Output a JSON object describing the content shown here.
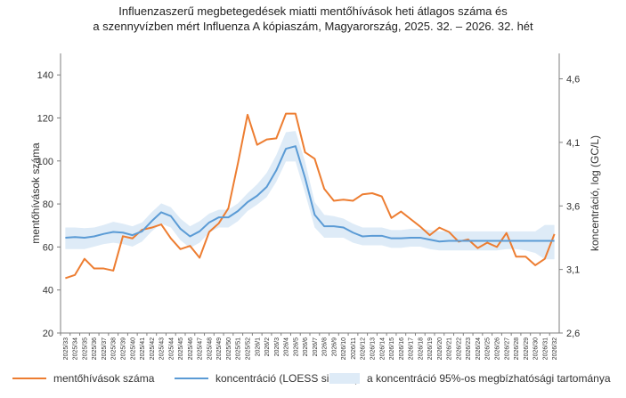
{
  "chart_data": {
    "type": "line",
    "title_line1": "Influenzaszerű megbetegedések miatti mentőhívások heti átlagos száma és",
    "title_line2": "a szennyvízben mért Influenza A kópiaszám, Magyarország, 2025. 32. – 2026. 32. hét",
    "ylabel_left": "mentőhívások száma",
    "ylabel_right": "koncentráció, log (GC/L)",
    "ylim_left": [
      20,
      150
    ],
    "yticks_left": [
      "20",
      "40",
      "60",
      "80",
      "100",
      "120",
      "140"
    ],
    "ylim_right": [
      2.6,
      4.8
    ],
    "yticks_right": [
      "2,6",
      "3,1",
      "3,6",
      "4,1",
      "4,6"
    ],
    "categories": [
      "2025/33",
      "2025/34",
      "2025/35",
      "2025/36",
      "2025/37",
      "2025/38",
      "2025/39",
      "2025/40",
      "2025/41",
      "2025/42",
      "2025/43",
      "2025/44",
      "2025/45",
      "2025/46",
      "2025/47",
      "2025/48",
      "2025/49",
      "2025/50",
      "2025/51",
      "2025/52",
      "2026/1",
      "2026/2",
      "2026/3",
      "2026/4",
      "2026/5",
      "2026/6",
      "2026/7",
      "2026/8",
      "2026/9",
      "2026/10",
      "2026/11",
      "2026/12",
      "2026/13",
      "2026/14",
      "2026/15",
      "2026/16",
      "2026/17",
      "2026/18",
      "2026/19",
      "2026/20",
      "2026/21",
      "2026/22",
      "2026/23",
      "2026/24",
      "2026/25",
      "2026/26",
      "2026/27",
      "2026/28",
      "2026/29",
      "2026/30",
      "2026/31",
      "2026/32"
    ],
    "series": [
      {
        "name": "mentőhívások száma",
        "color": "#ED7D31",
        "axis": "left",
        "values": [
          45.5,
          47,
          54.5,
          50,
          50,
          49,
          65,
          64,
          68,
          69,
          70.5,
          64,
          59,
          60.5,
          55,
          67,
          71,
          78,
          99,
          121.5,
          107.5,
          110,
          110.5,
          122,
          122,
          104,
          101,
          87,
          81.5,
          82,
          81.5,
          84.5,
          85,
          83.5,
          73.5,
          76.5,
          73,
          69.5,
          65.5,
          69,
          67,
          62.5,
          63.5,
          59.5,
          62,
          60,
          66.5,
          55.5,
          55.5,
          51.5,
          54.5,
          66
        ]
      },
      {
        "name": "koncentráció (LOESS simítás)",
        "color": "#5B9BD5",
        "axis": "right",
        "values": [
          3.35,
          3.355,
          3.35,
          3.36,
          3.38,
          3.395,
          3.39,
          3.37,
          3.4,
          3.48,
          3.55,
          3.52,
          3.42,
          3.36,
          3.4,
          3.47,
          3.51,
          3.51,
          3.56,
          3.63,
          3.68,
          3.75,
          3.88,
          4.05,
          4.07,
          3.82,
          3.53,
          3.44,
          3.44,
          3.43,
          3.39,
          3.36,
          3.365,
          3.365,
          3.345,
          3.345,
          3.35,
          3.35,
          3.335,
          3.32,
          3.325,
          3.325,
          3.325,
          3.325,
          3.325,
          3.325,
          3.325,
          3.325,
          3.325,
          3.325,
          3.325,
          3.325
        ]
      }
    ],
    "band": {
      "name": "a koncentráció 95%-os megbízhatósági tartománya",
      "color": "#DEEBF7",
      "axis": "right",
      "upper": [
        3.43,
        3.43,
        3.425,
        3.43,
        3.45,
        3.475,
        3.46,
        3.44,
        3.47,
        3.55,
        3.62,
        3.59,
        3.5,
        3.44,
        3.48,
        3.54,
        3.57,
        3.57,
        3.62,
        3.7,
        3.77,
        3.86,
        4.0,
        4.18,
        4.19,
        3.95,
        3.63,
        3.53,
        3.52,
        3.5,
        3.46,
        3.43,
        3.43,
        3.43,
        3.41,
        3.41,
        3.42,
        3.42,
        3.41,
        3.4,
        3.4,
        3.4,
        3.4,
        3.4,
        3.4,
        3.4,
        3.4,
        3.4,
        3.4,
        3.4,
        3.45,
        3.45
      ],
      "lower": [
        3.26,
        3.26,
        3.26,
        3.28,
        3.3,
        3.31,
        3.3,
        3.28,
        3.32,
        3.4,
        3.46,
        3.43,
        3.33,
        3.27,
        3.31,
        3.39,
        3.43,
        3.43,
        3.48,
        3.56,
        3.61,
        3.67,
        3.79,
        3.95,
        3.95,
        3.7,
        3.43,
        3.35,
        3.35,
        3.35,
        3.31,
        3.29,
        3.29,
        3.29,
        3.27,
        3.27,
        3.28,
        3.28,
        3.26,
        3.25,
        3.25,
        3.25,
        3.25,
        3.25,
        3.25,
        3.25,
        3.26,
        3.26,
        3.25,
        3.23,
        3.18,
        3.18
      ]
    },
    "legend_position": "bottom",
    "grid": false
  }
}
